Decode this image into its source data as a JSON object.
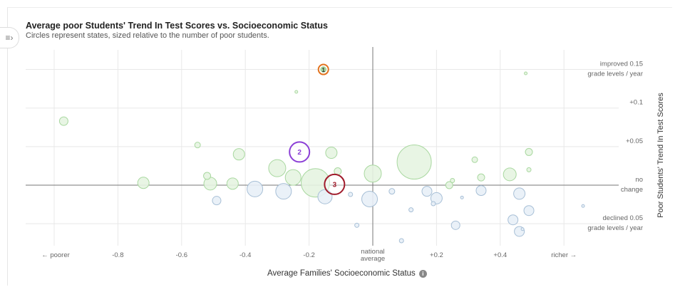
{
  "header": {
    "title": "Average poor Students' Trend In Test Scores vs. Socioeconomic Status",
    "subtitle": "Circles represent states, sized relative to the number of poor students."
  },
  "controls": {
    "sidebar_toggle_icon": "sidebar-toggle-icon",
    "info_icon": "info-icon"
  },
  "chart_data": {
    "type": "scatter",
    "title": "Average poor Students' Trend In Test Scores vs. Socioeconomic Status",
    "subtitle": "Circles represent states, sized relative to the number of poor students.",
    "xlabel": "Average Families' Socioeconomic Status",
    "ylabel": "Poor Students' Trend In Test Scores",
    "xlim": [
      -1.05,
      0.85
    ],
    "ylim": [
      -0.09,
      0.15
    ],
    "grid": true,
    "x_ticks": [
      {
        "value": -1.0,
        "label": "← poorer"
      },
      {
        "value": -0.8,
        "label": "-0.8"
      },
      {
        "value": -0.6,
        "label": "-0.6"
      },
      {
        "value": -0.4,
        "label": "-0.4"
      },
      {
        "value": -0.2,
        "label": "-0.2"
      },
      {
        "value": 0.2,
        "label": "+0.2"
      },
      {
        "value": 0.4,
        "label": "+0.4"
      },
      {
        "value": 0.6,
        "label": "richer →"
      }
    ],
    "x_center_label": [
      "national",
      "average"
    ],
    "y_ticks": [
      {
        "value": 0.15,
        "label": [
          "improved 0.15",
          "grade levels / year"
        ]
      },
      {
        "value": 0.1,
        "label": [
          "+0.1"
        ]
      },
      {
        "value": 0.05,
        "label": [
          "+0.05"
        ]
      },
      {
        "value": 0.0,
        "label": [
          "no",
          "change"
        ]
      },
      {
        "value": -0.05,
        "label": [
          "declined 0.05",
          "grade levels / year"
        ]
      }
    ],
    "colors": {
      "positive_fill": "#e6f4e1",
      "positive_stroke": "#a9d8a0",
      "negative_fill": "#e8eff7",
      "negative_stroke": "#a7bfd6",
      "highlight_1": "#e2731f",
      "highlight_2": "#8b3fd6",
      "highlight_3": "#a01c2c",
      "grid": "#e8e8e8",
      "axis": "#777777"
    },
    "points": [
      {
        "x": -0.97,
        "y": 0.083,
        "size": 6
      },
      {
        "x": -0.55,
        "y": 0.052,
        "size": 4
      },
      {
        "x": -0.42,
        "y": 0.04,
        "size": 8
      },
      {
        "x": -0.3,
        "y": 0.022,
        "size": 12
      },
      {
        "x": -0.13,
        "y": 0.042,
        "size": 8
      },
      {
        "x": 0.13,
        "y": 0.03,
        "size": 24
      },
      {
        "x": 0.0,
        "y": 0.015,
        "size": 12
      },
      {
        "x": 0.49,
        "y": 0.043,
        "size": 5
      },
      {
        "x": -0.24,
        "y": 0.121,
        "size": 2
      },
      {
        "x": 0.48,
        "y": 0.145,
        "size": 2
      },
      {
        "x": -0.72,
        "y": 0.003,
        "size": 8
      },
      {
        "x": -0.52,
        "y": 0.012,
        "size": 5
      },
      {
        "x": -0.51,
        "y": 0.002,
        "size": 9
      },
      {
        "x": -0.49,
        "y": -0.02,
        "size": 6
      },
      {
        "x": -0.44,
        "y": 0.002,
        "size": 8
      },
      {
        "x": -0.37,
        "y": -0.005,
        "size": 11
      },
      {
        "x": -0.28,
        "y": -0.008,
        "size": 11
      },
      {
        "x": -0.25,
        "y": 0.01,
        "size": 11
      },
      {
        "x": -0.18,
        "y": 0.003,
        "size": 20
      },
      {
        "x": -0.15,
        "y": -0.015,
        "size": 10
      },
      {
        "x": -0.11,
        "y": 0.018,
        "size": 5
      },
      {
        "x": -0.07,
        "y": -0.012,
        "size": 3
      },
      {
        "x": -0.05,
        "y": -0.052,
        "size": 3
      },
      {
        "x": -0.01,
        "y": -0.018,
        "size": 11
      },
      {
        "x": 0.06,
        "y": -0.008,
        "size": 4
      },
      {
        "x": 0.09,
        "y": -0.072,
        "size": 3
      },
      {
        "x": 0.12,
        "y": -0.032,
        "size": 3
      },
      {
        "x": 0.17,
        "y": -0.008,
        "size": 7
      },
      {
        "x": 0.19,
        "y": -0.024,
        "size": 3
      },
      {
        "x": 0.2,
        "y": -0.017,
        "size": 8
      },
      {
        "x": 0.24,
        "y": 0.0,
        "size": 5
      },
      {
        "x": 0.25,
        "y": 0.006,
        "size": 3
      },
      {
        "x": 0.26,
        "y": -0.052,
        "size": 6
      },
      {
        "x": 0.28,
        "y": -0.016,
        "size": 2
      },
      {
        "x": 0.32,
        "y": 0.033,
        "size": 4
      },
      {
        "x": 0.34,
        "y": -0.007,
        "size": 7
      },
      {
        "x": 0.34,
        "y": 0.01,
        "size": 5
      },
      {
        "x": 0.43,
        "y": 0.014,
        "size": 9
      },
      {
        "x": 0.44,
        "y": -0.045,
        "size": 7
      },
      {
        "x": 0.46,
        "y": -0.06,
        "size": 7
      },
      {
        "x": 0.46,
        "y": -0.011,
        "size": 8
      },
      {
        "x": 0.47,
        "y": -0.057,
        "size": 2
      },
      {
        "x": 0.49,
        "y": -0.033,
        "size": 7
      },
      {
        "x": 0.49,
        "y": 0.02,
        "size": 3
      },
      {
        "x": 0.66,
        "y": -0.027,
        "size": 2
      }
    ],
    "highlights": [
      {
        "label": "1",
        "x": -0.155,
        "y": 0.15,
        "color_key": "highlight_1"
      },
      {
        "label": "2",
        "x": -0.23,
        "y": 0.043,
        "color_key": "highlight_2"
      },
      {
        "label": "3",
        "x": -0.12,
        "y": 0.001,
        "color_key": "highlight_3"
      }
    ]
  }
}
